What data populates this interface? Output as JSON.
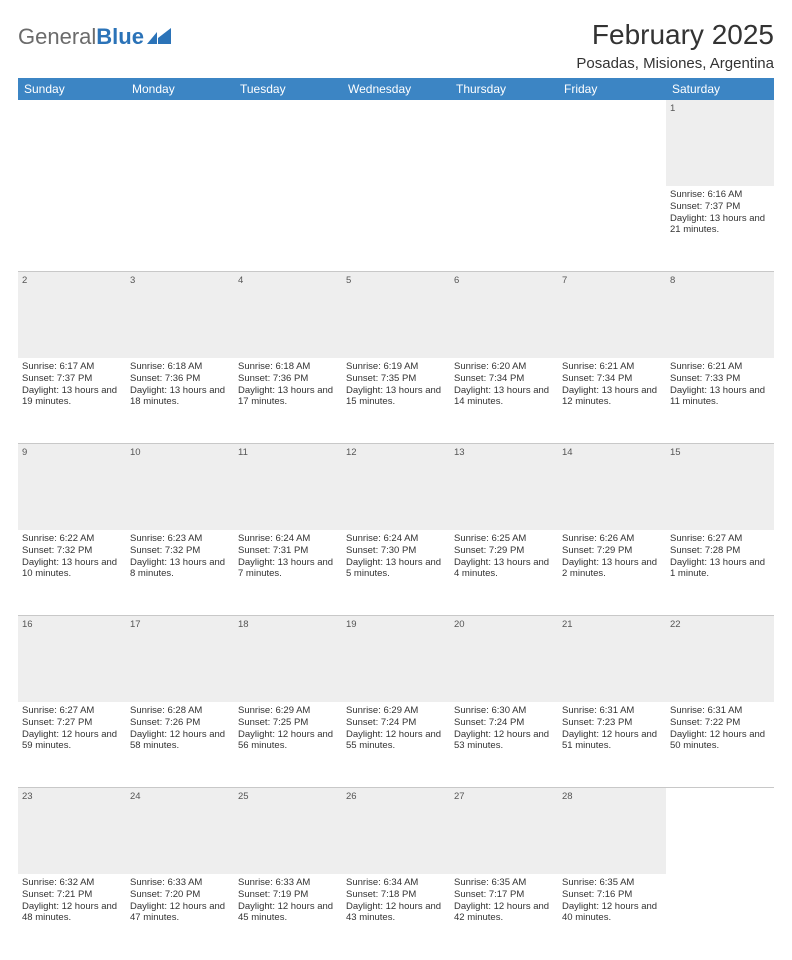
{
  "logo": {
    "text1": "General",
    "text2": "Blue"
  },
  "title": "February 2025",
  "location": "Posadas, Misiones, Argentina",
  "colors": {
    "header_bg": "#3c85c4",
    "header_fg": "#ffffff",
    "daynum_bg": "#eeeeee",
    "border": "#c8c8c8",
    "text": "#333333",
    "logo_gray": "#6b6b6b",
    "logo_blue": "#2b73b8"
  },
  "weekdays": [
    "Sunday",
    "Monday",
    "Tuesday",
    "Wednesday",
    "Thursday",
    "Friday",
    "Saturday"
  ],
  "weeks": [
    {
      "days": [
        null,
        null,
        null,
        null,
        null,
        null,
        {
          "n": "1",
          "sunrise": "6:16 AM",
          "sunset": "7:37 PM",
          "daylight": "13 hours and 21 minutes."
        }
      ]
    },
    {
      "days": [
        {
          "n": "2",
          "sunrise": "6:17 AM",
          "sunset": "7:37 PM",
          "daylight": "13 hours and 19 minutes."
        },
        {
          "n": "3",
          "sunrise": "6:18 AM",
          "sunset": "7:36 PM",
          "daylight": "13 hours and 18 minutes."
        },
        {
          "n": "4",
          "sunrise": "6:18 AM",
          "sunset": "7:36 PM",
          "daylight": "13 hours and 17 minutes."
        },
        {
          "n": "5",
          "sunrise": "6:19 AM",
          "sunset": "7:35 PM",
          "daylight": "13 hours and 15 minutes."
        },
        {
          "n": "6",
          "sunrise": "6:20 AM",
          "sunset": "7:34 PM",
          "daylight": "13 hours and 14 minutes."
        },
        {
          "n": "7",
          "sunrise": "6:21 AM",
          "sunset": "7:34 PM",
          "daylight": "13 hours and 12 minutes."
        },
        {
          "n": "8",
          "sunrise": "6:21 AM",
          "sunset": "7:33 PM",
          "daylight": "13 hours and 11 minutes."
        }
      ]
    },
    {
      "days": [
        {
          "n": "9",
          "sunrise": "6:22 AM",
          "sunset": "7:32 PM",
          "daylight": "13 hours and 10 minutes."
        },
        {
          "n": "10",
          "sunrise": "6:23 AM",
          "sunset": "7:32 PM",
          "daylight": "13 hours and 8 minutes."
        },
        {
          "n": "11",
          "sunrise": "6:24 AM",
          "sunset": "7:31 PM",
          "daylight": "13 hours and 7 minutes."
        },
        {
          "n": "12",
          "sunrise": "6:24 AM",
          "sunset": "7:30 PM",
          "daylight": "13 hours and 5 minutes."
        },
        {
          "n": "13",
          "sunrise": "6:25 AM",
          "sunset": "7:29 PM",
          "daylight": "13 hours and 4 minutes."
        },
        {
          "n": "14",
          "sunrise": "6:26 AM",
          "sunset": "7:29 PM",
          "daylight": "13 hours and 2 minutes."
        },
        {
          "n": "15",
          "sunrise": "6:27 AM",
          "sunset": "7:28 PM",
          "daylight": "13 hours and 1 minute."
        }
      ]
    },
    {
      "days": [
        {
          "n": "16",
          "sunrise": "6:27 AM",
          "sunset": "7:27 PM",
          "daylight": "12 hours and 59 minutes."
        },
        {
          "n": "17",
          "sunrise": "6:28 AM",
          "sunset": "7:26 PM",
          "daylight": "12 hours and 58 minutes."
        },
        {
          "n": "18",
          "sunrise": "6:29 AM",
          "sunset": "7:25 PM",
          "daylight": "12 hours and 56 minutes."
        },
        {
          "n": "19",
          "sunrise": "6:29 AM",
          "sunset": "7:24 PM",
          "daylight": "12 hours and 55 minutes."
        },
        {
          "n": "20",
          "sunrise": "6:30 AM",
          "sunset": "7:24 PM",
          "daylight": "12 hours and 53 minutes."
        },
        {
          "n": "21",
          "sunrise": "6:31 AM",
          "sunset": "7:23 PM",
          "daylight": "12 hours and 51 minutes."
        },
        {
          "n": "22",
          "sunrise": "6:31 AM",
          "sunset": "7:22 PM",
          "daylight": "12 hours and 50 minutes."
        }
      ]
    },
    {
      "days": [
        {
          "n": "23",
          "sunrise": "6:32 AM",
          "sunset": "7:21 PM",
          "daylight": "12 hours and 48 minutes."
        },
        {
          "n": "24",
          "sunrise": "6:33 AM",
          "sunset": "7:20 PM",
          "daylight": "12 hours and 47 minutes."
        },
        {
          "n": "25",
          "sunrise": "6:33 AM",
          "sunset": "7:19 PM",
          "daylight": "12 hours and 45 minutes."
        },
        {
          "n": "26",
          "sunrise": "6:34 AM",
          "sunset": "7:18 PM",
          "daylight": "12 hours and 43 minutes."
        },
        {
          "n": "27",
          "sunrise": "6:35 AM",
          "sunset": "7:17 PM",
          "daylight": "12 hours and 42 minutes."
        },
        {
          "n": "28",
          "sunrise": "6:35 AM",
          "sunset": "7:16 PM",
          "daylight": "12 hours and 40 minutes."
        },
        null
      ]
    }
  ],
  "labels": {
    "sunrise": "Sunrise:",
    "sunset": "Sunset:",
    "daylight": "Daylight:"
  }
}
